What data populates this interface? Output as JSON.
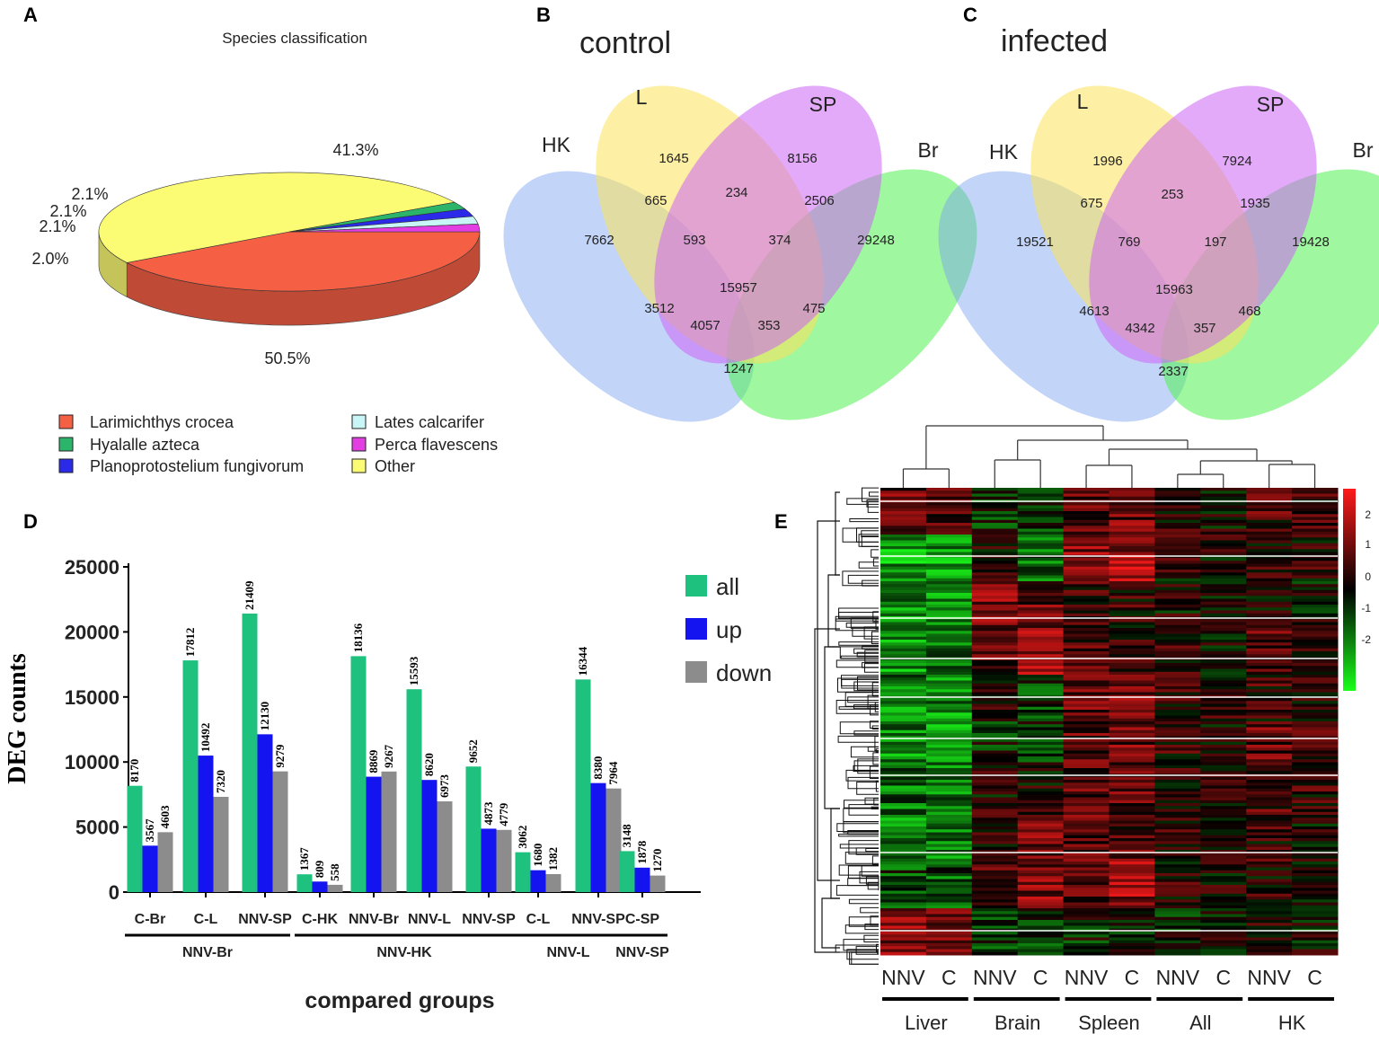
{
  "panels": {
    "a": "A",
    "b": "B",
    "c": "C",
    "d": "D",
    "e": "E"
  },
  "chart_data": [
    {
      "type": "pie",
      "title": "Species classification",
      "slices": [
        {
          "name": "Larimichthys crocea",
          "percent": 41.3,
          "label": "41.3%",
          "color": "#f55f44"
        },
        {
          "name": "Other",
          "percent": 50.5,
          "label": "50.5%",
          "color": "#fbfb74"
        },
        {
          "name": "Hyalalle azteca",
          "percent": 2.0,
          "label": "2.0%",
          "color": "#2ab56a"
        },
        {
          "name": "Planoprotostelium fungivorum",
          "percent": 2.1,
          "label": "2.1%",
          "color": "#2a2ae8"
        },
        {
          "name": "Lates calcarifer",
          "percent": 2.1,
          "label": "2.1%",
          "color": "#c8f5f5"
        },
        {
          "name": "Perca flavescens",
          "percent": 2.1,
          "label": "2.1%",
          "color": "#e23ee2"
        }
      ],
      "legend": [
        "Larimichthys crocea",
        "Hyalalle azteca",
        "Planoprotostelium fungivorum",
        "Lates calcarifer",
        "Perca flavescens",
        "Other"
      ]
    },
    {
      "type": "venn",
      "title": "control",
      "sets": [
        "HK",
        "L",
        "SP",
        "Br"
      ],
      "regions": {
        "HK": 7662,
        "L": 1645,
        "SP": 8156,
        "Br": 29248,
        "HK_L": 665,
        "L_SP": 234,
        "SP_Br": 2506,
        "HK_L_SP": 593,
        "L_SP_Br": 374,
        "HK_L_SP_Br": 15957,
        "HK_SP": 3512,
        "L_Br": 475,
        "HK_SP_Br": 4057,
        "HK_L_Br": 353,
        "HK_Br": 1247
      }
    },
    {
      "type": "venn",
      "title": "infected",
      "sets": [
        "HK",
        "L",
        "SP",
        "Br"
      ],
      "regions": {
        "HK": 19521,
        "L": 1996,
        "SP": 7924,
        "Br": 19428,
        "HK_L": 675,
        "L_SP": 253,
        "SP_Br": 1935,
        "HK_L_SP": 769,
        "L_SP_Br": 197,
        "HK_L_SP_Br": 15963,
        "HK_SP": 4613,
        "L_Br": 468,
        "HK_SP_Br": 4342,
        "HK_L_Br": 357,
        "HK_Br": 2337
      }
    },
    {
      "type": "bar",
      "xlabel": "compared groups",
      "ylabel": "DEG counts",
      "ylim": [
        0,
        25000
      ],
      "yticks": [
        0,
        5000,
        10000,
        15000,
        20000,
        25000
      ],
      "categories": [
        "C-Br",
        "C-L",
        "NNV-SP",
        "C-HK",
        "NNV-Br",
        "NNV-L",
        "NNV-SP",
        "C-L",
        "NNV-SP",
        "C-SP"
      ],
      "groups": [
        {
          "name": "NNV-Br",
          "span": [
            0,
            2
          ]
        },
        {
          "name": "NNV-HK",
          "span": [
            3,
            6
          ]
        },
        {
          "name": "NNV-L",
          "span": [
            7,
            8
          ]
        },
        {
          "name": "NNV-SP",
          "span": [
            9,
            9
          ]
        }
      ],
      "series": [
        {
          "name": "all",
          "color": "#1ec27e",
          "values": [
            8170,
            17812,
            21409,
            1367,
            18136,
            15593,
            9652,
            3062,
            16344,
            3148
          ]
        },
        {
          "name": "up",
          "color": "#1414f0",
          "values": [
            3567,
            10492,
            12130,
            809,
            8869,
            8620,
            4873,
            1680,
            8380,
            1878
          ]
        },
        {
          "name": "down",
          "color": "#8c8c8c",
          "values": [
            4603,
            7320,
            9279,
            558,
            9267,
            6973,
            4779,
            1382,
            7964,
            1270
          ]
        }
      ]
    },
    {
      "type": "heatmap",
      "columns": [
        "NNV",
        "C",
        "NNV",
        "C",
        "NNV",
        "C",
        "NNV",
        "C",
        "NNV",
        "C"
      ],
      "groups": [
        "Liver",
        "Brain",
        "Spleen",
        "All",
        "HK"
      ],
      "colorbar_ticks": [
        "2",
        "1",
        "0",
        "-1",
        "-2"
      ],
      "color_high": "#ff1a1a",
      "color_mid": "#000000",
      "color_low": "#1aff1a"
    }
  ]
}
